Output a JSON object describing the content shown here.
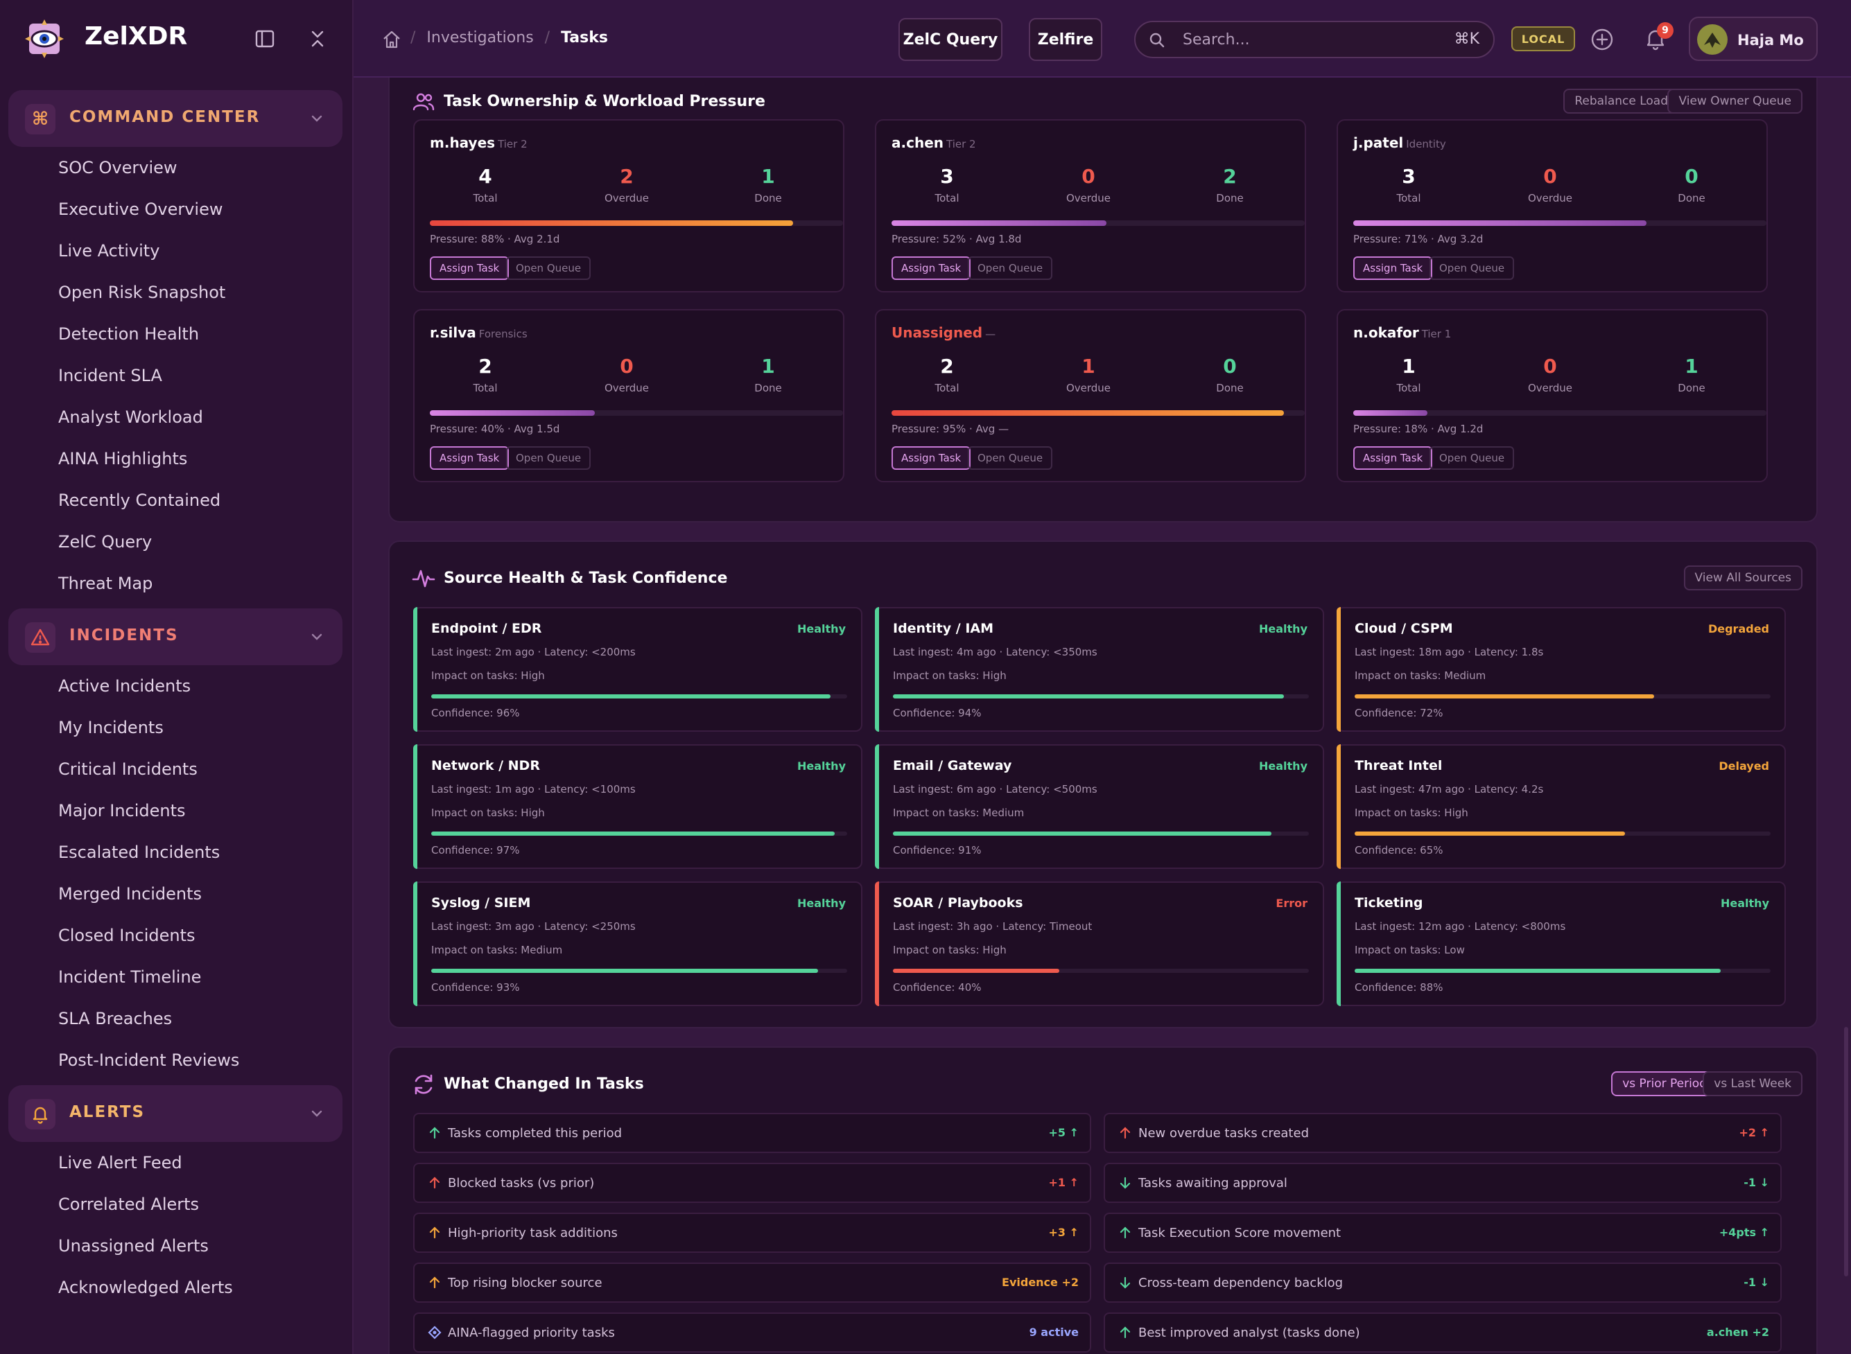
{
  "app": {
    "name": "ZelXDR"
  },
  "sidebar": {
    "sections": [
      {
        "title": "COMMAND CENTER",
        "icon": "command-icon",
        "items": [
          "SOC Overview",
          "Executive Overview",
          "Live Activity",
          "Open Risk Snapshot",
          "Detection Health",
          "Incident SLA",
          "Analyst Workload",
          "AINA Highlights",
          "Recently Contained",
          "ZelC Query",
          "Threat Map"
        ]
      },
      {
        "title": "INCIDENTS",
        "icon": "warning-triangle-icon",
        "items": [
          "Active Incidents",
          "My Incidents",
          "Critical Incidents",
          "Major Incidents",
          "Escalated Incidents",
          "Merged Incidents",
          "Closed Incidents",
          "Incident Timeline",
          "SLA Breaches",
          "Post-Incident Reviews"
        ]
      },
      {
        "title": "ALERTS",
        "icon": "bell-icon",
        "items": [
          "Live Alert Feed",
          "Correlated Alerts",
          "Unassigned Alerts",
          "Acknowledged Alerts"
        ]
      }
    ]
  },
  "topbar": {
    "breadcrumb": [
      "Investigations",
      "Tasks"
    ],
    "buttons": [
      "ZelC Query",
      "Zelfire"
    ],
    "search": {
      "placeholder": "Search...",
      "shortcut": "⌘K"
    },
    "env_badge": "LOCAL",
    "notifications": "9",
    "user": "Haja Mo"
  },
  "ownership": {
    "title": "Task Ownership & Workload Pressure",
    "actions": [
      "Rebalance Load",
      "View Owner Queue"
    ],
    "labels": {
      "total": "Total",
      "overdue": "Overdue",
      "done": "Done",
      "assign": "Assign Task",
      "open": "Open Queue"
    },
    "owners": [
      {
        "name": "m.hayes",
        "tier": "Tier 2",
        "total": "4",
        "overdue": "2",
        "done": "1",
        "pressure": 0.88,
        "pressure_text": "Pressure: 88% · Avg 2.1d",
        "style": "hot"
      },
      {
        "name": "a.chen",
        "tier": "Tier 2",
        "total": "3",
        "overdue": "0",
        "done": "2",
        "pressure": 0.52,
        "pressure_text": "Pressure: 52% · Avg 1.8d",
        "style": "cool"
      },
      {
        "name": "j.patel",
        "tier": "Identity",
        "total": "3",
        "overdue": "0",
        "done": "0",
        "pressure": 0.71,
        "pressure_text": "Pressure: 71% · Avg 3.2d",
        "style": "cool"
      },
      {
        "name": "r.silva",
        "tier": "Forensics",
        "total": "2",
        "overdue": "0",
        "done": "1",
        "pressure": 0.4,
        "pressure_text": "Pressure: 40% · Avg 1.5d",
        "style": "cool"
      },
      {
        "name": "Unassigned",
        "tier": "—",
        "total": "2",
        "overdue": "1",
        "done": "0",
        "pressure": 0.95,
        "pressure_text": "Pressure: 95% · Avg —",
        "style": "hot"
      },
      {
        "name": "n.okafor",
        "tier": "Tier 1",
        "total": "1",
        "overdue": "0",
        "done": "1",
        "pressure": 0.18,
        "pressure_text": "Pressure: 18% · Avg 1.2d",
        "style": "cool"
      }
    ]
  },
  "sources": {
    "title": "Source Health & Task Confidence",
    "action": "View All Sources",
    "items": [
      {
        "name": "Endpoint / EDR",
        "status": "Healthy",
        "ingest": "Last ingest: 2m ago · Latency: <200ms",
        "impact": "Impact on tasks: High",
        "confidence": 0.96,
        "confidence_text": "Confidence: 96%"
      },
      {
        "name": "Identity / IAM",
        "status": "Healthy",
        "ingest": "Last ingest: 4m ago · Latency: <350ms",
        "impact": "Impact on tasks: High",
        "confidence": 0.94,
        "confidence_text": "Confidence: 94%"
      },
      {
        "name": "Cloud / CSPM",
        "status": "Degraded",
        "ingest": "Last ingest: 18m ago · Latency: 1.8s",
        "impact": "Impact on tasks: Medium",
        "confidence": 0.72,
        "confidence_text": "Confidence: 72%"
      },
      {
        "name": "Network / NDR",
        "status": "Healthy",
        "ingest": "Last ingest: 1m ago · Latency: <100ms",
        "impact": "Impact on tasks: High",
        "confidence": 0.97,
        "confidence_text": "Confidence: 97%"
      },
      {
        "name": "Email / Gateway",
        "status": "Healthy",
        "ingest": "Last ingest: 6m ago · Latency: <500ms",
        "impact": "Impact on tasks: Medium",
        "confidence": 0.91,
        "confidence_text": "Confidence: 91%"
      },
      {
        "name": "Threat Intel",
        "status": "Delayed",
        "ingest": "Last ingest: 47m ago · Latency: 4.2s",
        "impact": "Impact on tasks: High",
        "confidence": 0.65,
        "confidence_text": "Confidence: 65%"
      },
      {
        "name": "Syslog / SIEM",
        "status": "Healthy",
        "ingest": "Last ingest: 3m ago · Latency: <250ms",
        "impact": "Impact on tasks: Medium",
        "confidence": 0.93,
        "confidence_text": "Confidence: 93%"
      },
      {
        "name": "SOAR / Playbooks",
        "status": "Error",
        "ingest": "Last ingest: 3h ago · Latency: Timeout",
        "impact": "Impact on tasks: High",
        "confidence": 0.4,
        "confidence_text": "Confidence: 40%"
      },
      {
        "name": "Ticketing",
        "status": "Healthy",
        "ingest": "Last ingest: 12m ago · Latency: <800ms",
        "impact": "Impact on tasks: Low",
        "confidence": 0.88,
        "confidence_text": "Confidence: 88%"
      }
    ]
  },
  "changes": {
    "title": "What Changed In Tasks",
    "toggles": [
      "vs Prior Period",
      "vs Last Week"
    ],
    "items": [
      {
        "text": "Tasks completed this period",
        "value": "+5 ↑",
        "icon": "arrow-up-icon",
        "tone": "good"
      },
      {
        "text": "New overdue tasks created",
        "value": "+2 ↑",
        "icon": "arrow-up-icon",
        "tone": "bad"
      },
      {
        "text": "Blocked tasks (vs prior)",
        "value": "+1 ↑",
        "icon": "arrow-up-icon",
        "tone": "bad"
      },
      {
        "text": "Tasks awaiting approval",
        "value": "-1 ↓",
        "icon": "arrow-down-icon",
        "tone": "good"
      },
      {
        "text": "High-priority task additions",
        "value": "+3 ↑",
        "icon": "arrow-up-icon",
        "tone": "warn"
      },
      {
        "text": "Task Execution Score movement",
        "value": "+4pts ↑",
        "icon": "arrow-up-icon",
        "tone": "good"
      },
      {
        "text": "Top rising blocker source",
        "value": "Evidence +2",
        "icon": "arrow-up-icon",
        "tone": "warn"
      },
      {
        "text": "Cross-team dependency backlog",
        "value": "-1 ↓",
        "icon": "arrow-down-icon",
        "tone": "good"
      },
      {
        "text": "AINA-flagged priority tasks",
        "value": "9 active",
        "icon": "diamond-icon",
        "tone": "info"
      },
      {
        "text": "Best improved analyst (tasks done)",
        "value": "a.chen +2",
        "icon": "arrow-up-icon",
        "tone": "good"
      }
    ]
  },
  "colors": {
    "good": "#55d39a",
    "bad": "#ef5a4e",
    "warn": "#f4a53b",
    "info": "#9aa6ff",
    "accent": "#c678d4"
  }
}
